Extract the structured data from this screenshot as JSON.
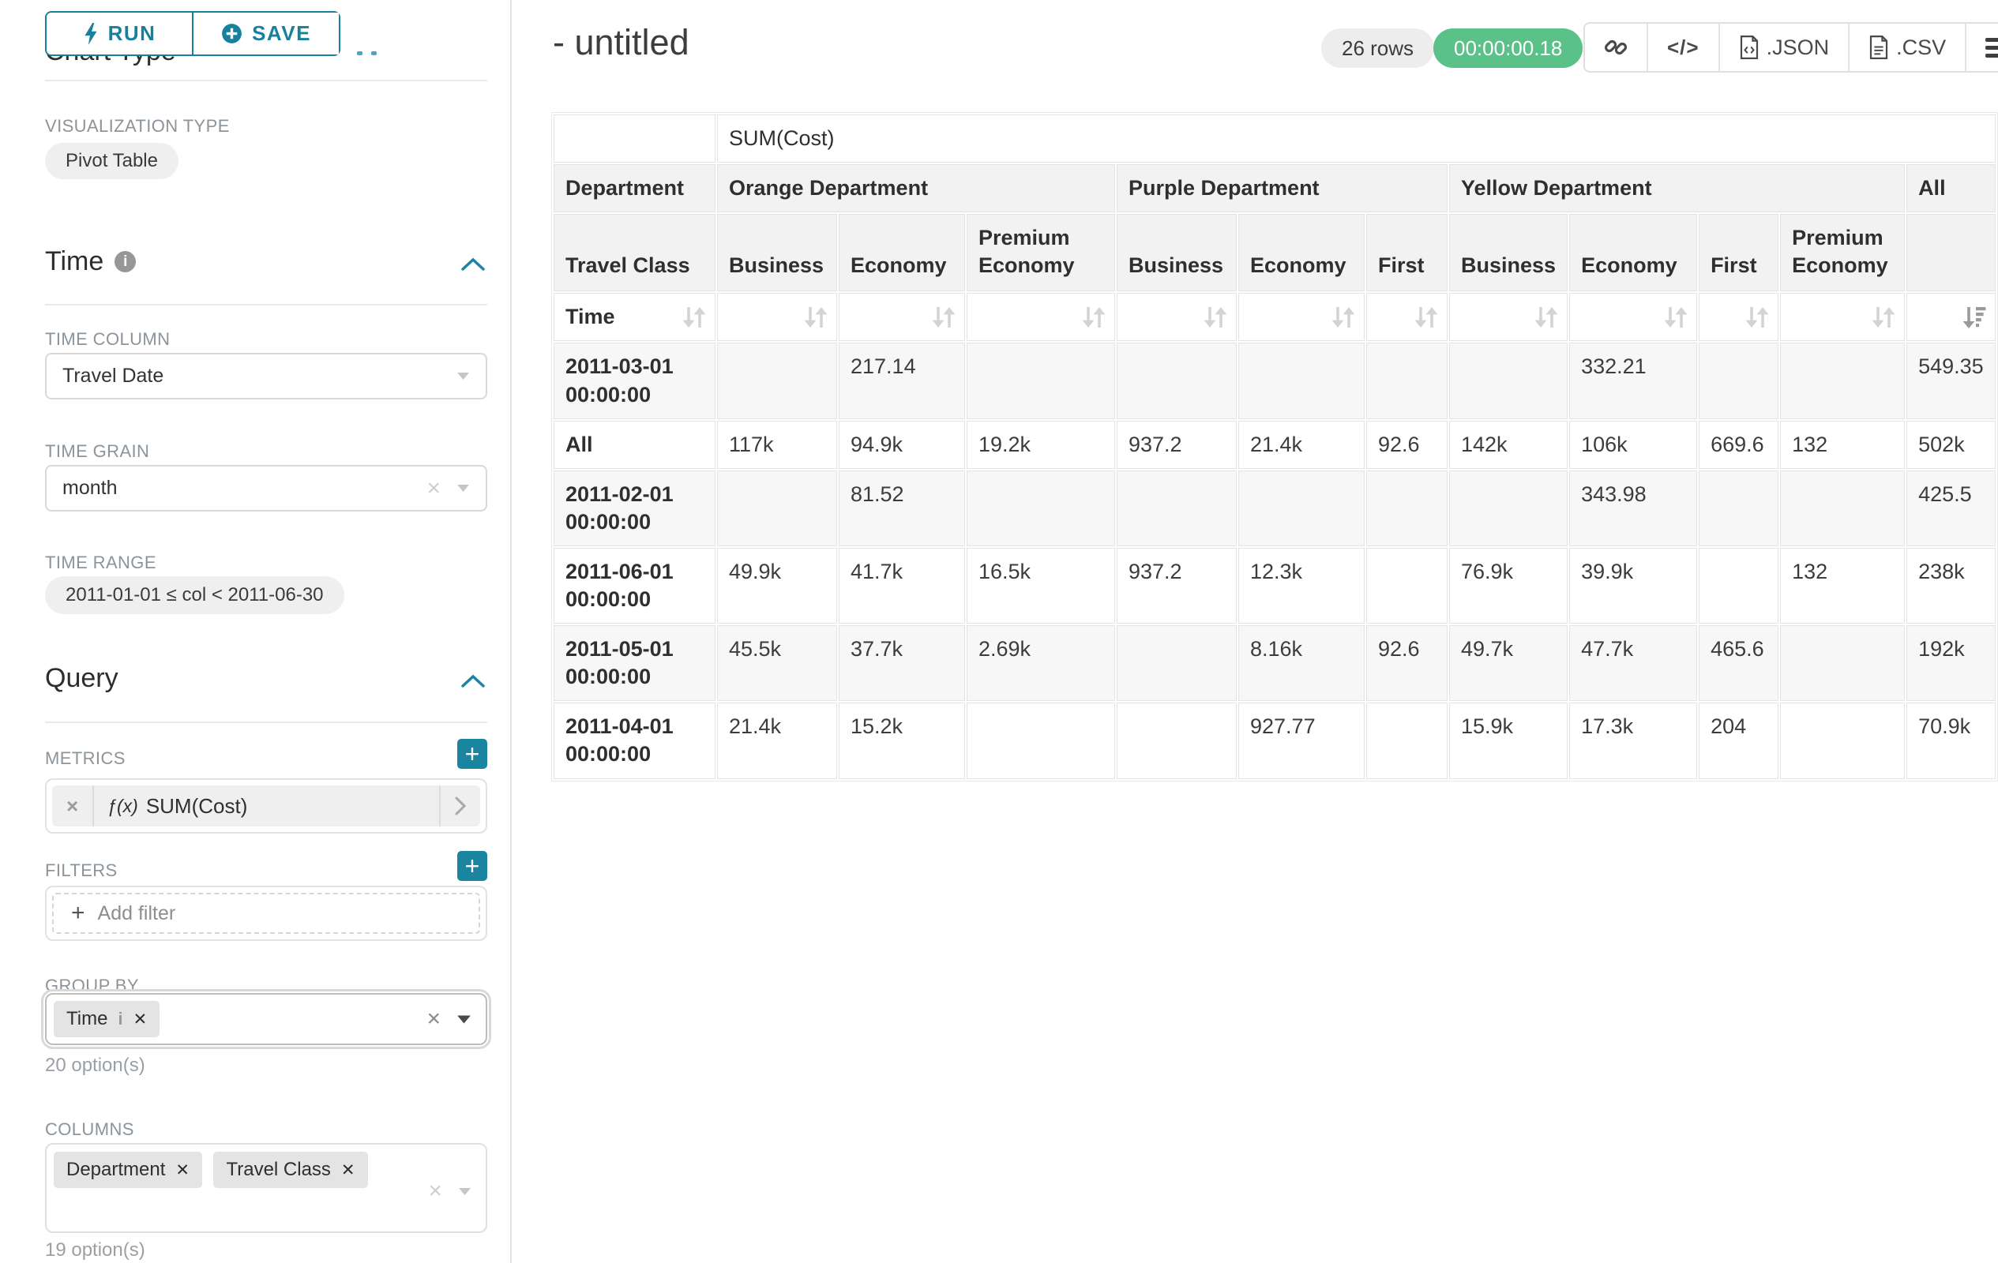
{
  "colors": {
    "accent": "#1a85a0",
    "success": "#5ac189"
  },
  "sidebar": {
    "run_button": "RUN",
    "save_button": "SAVE",
    "chart_type_heading": "Chart Type",
    "visualization_type_label": "VISUALIZATION TYPE",
    "visualization_type_value": "Pivot Table",
    "time": {
      "heading": "Time",
      "time_column_label": "TIME COLUMN",
      "time_column_value": "Travel Date",
      "time_grain_label": "TIME GRAIN",
      "time_grain_value": "month",
      "time_range_label": "TIME RANGE",
      "time_range_value": "2011-01-01 ≤ col < 2011-06-30"
    },
    "query": {
      "heading": "Query",
      "metrics_label": "METRICS",
      "metric_fx": "ƒ(x)",
      "metric_name": "SUM(Cost)",
      "filters_label": "FILTERS",
      "add_filter_label": "Add filter",
      "group_by_label": "GROUP BY",
      "group_by_chip": "Time",
      "group_by_options": "20 option(s)",
      "columns_label": "COLUMNS",
      "columns_chips": [
        "Department",
        "Travel Class"
      ],
      "columns_options": "19 option(s)"
    }
  },
  "header": {
    "title": "- untitled",
    "rows_badge": "26 rows",
    "timer": "00:00:00.18",
    "json_label": ".JSON",
    "csv_label": ".CSV"
  },
  "pivot_table": {
    "metric_header": "SUM(Cost)",
    "row_header_level1": "Department",
    "row_header_level2": "Travel Class",
    "row_header_level3": "Time",
    "column_groups": [
      {
        "label": "Orange Department",
        "children": [
          "Business",
          "Economy",
          "Premium Economy"
        ]
      },
      {
        "label": "Purple Department",
        "children": [
          "Business",
          "Economy",
          "First"
        ]
      },
      {
        "label": "Yellow Department",
        "children": [
          "Business",
          "Economy",
          "First",
          "Premium Economy"
        ]
      },
      {
        "label": "All",
        "children": [
          ""
        ]
      }
    ],
    "rows": [
      {
        "label": "2011-03-01 00:00:00",
        "values": [
          "",
          "217.14",
          "",
          "",
          "",
          "",
          "",
          "332.21",
          "",
          "",
          "549.35"
        ]
      },
      {
        "label": "All",
        "values": [
          "117k",
          "94.9k",
          "19.2k",
          "937.2",
          "21.4k",
          "92.6",
          "142k",
          "106k",
          "669.6",
          "132",
          "502k"
        ]
      },
      {
        "label": "2011-02-01 00:00:00",
        "values": [
          "",
          "81.52",
          "",
          "",
          "",
          "",
          "",
          "343.98",
          "",
          "",
          "425.5"
        ]
      },
      {
        "label": "2011-06-01 00:00:00",
        "values": [
          "49.9k",
          "41.7k",
          "16.5k",
          "937.2",
          "12.3k",
          "",
          "76.9k",
          "39.9k",
          "",
          "132",
          "238k"
        ]
      },
      {
        "label": "2011-05-01 00:00:00",
        "values": [
          "45.5k",
          "37.7k",
          "2.69k",
          "",
          "8.16k",
          "92.6",
          "49.7k",
          "47.7k",
          "465.6",
          "",
          "192k"
        ]
      },
      {
        "label": "2011-04-01 00:00:00",
        "values": [
          "21.4k",
          "15.2k",
          "",
          "",
          "927.77",
          "",
          "15.9k",
          "17.3k",
          "204",
          "",
          "70.9k"
        ]
      }
    ]
  }
}
